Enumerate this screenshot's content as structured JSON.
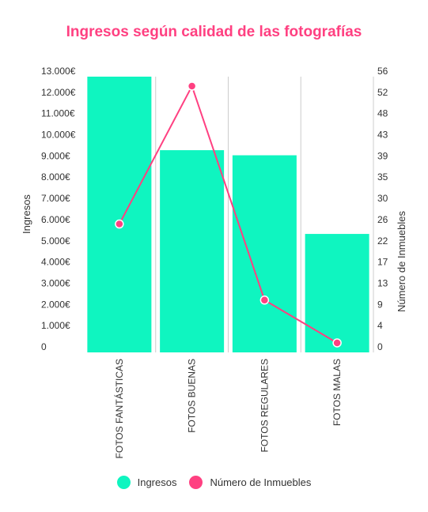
{
  "chart_data": {
    "type": "bar",
    "title": "Ingresos según calidad de las fotografías",
    "categories": [
      "FOTOS FANTÁSTICAS",
      "FOTOS BUENAS",
      "FOTOS REGULARES",
      "FOTOS MALAS"
    ],
    "series": [
      {
        "name": "Ingresos",
        "type": "bar",
        "axis": "left",
        "color": "#0ff5c0",
        "values": [
          13500,
          9900,
          9650,
          5800
        ]
      },
      {
        "name": "Número de Inmuebles",
        "type": "line",
        "axis": "right",
        "color": "#ff4081",
        "values": [
          27,
          56,
          11,
          2
        ]
      }
    ],
    "ylabel": "Ingresos",
    "y2label": "Número de Inmuebles",
    "ylim": [
      0,
      13500
    ],
    "y2lim": [
      0,
      58
    ],
    "yticks": [
      "0",
      "1.000€",
      "2.000€",
      "3.000€",
      "4.000€",
      "5.000€",
      "6.000€",
      "7.000€",
      "8.000€",
      "9.000€",
      "10.000€",
      "11.000€",
      "12.000€",
      "13.000€"
    ],
    "y2ticks": [
      "0",
      "4",
      "9",
      "13",
      "17",
      "22",
      "26",
      "30",
      "35",
      "39",
      "43",
      "48",
      "52",
      "56"
    ],
    "legend_position": "bottom",
    "grid": true
  },
  "colors": {
    "title": "#ff4081",
    "bar": "#0ff5c0",
    "line": "#ff4081",
    "grid": "#cccccc"
  }
}
